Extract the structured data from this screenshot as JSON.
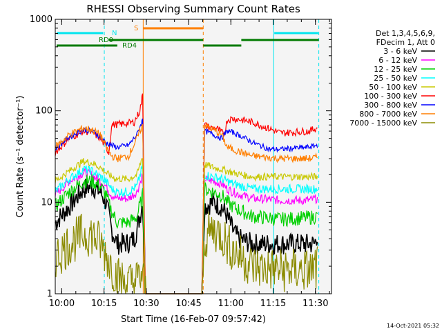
{
  "colors": {
    "background": "#ffffff",
    "plot_bg": "#f4f4f4",
    "axis": "#000000",
    "flag_cyan": "#00e5ee",
    "flag_green": "#007a00",
    "flag_orange": "#ff7f00"
  },
  "chart_data": {
    "type": "line",
    "title": "RHESSI Observing Summary Count Rates",
    "xlabel": "Start Time (16-Feb-07 09:57:42)",
    "ylabel": "Count Rate (s⁻¹ detector⁻¹)",
    "yscale": "log",
    "ylim": [
      1,
      1000
    ],
    "xlim_minutes": [
      0,
      98
    ],
    "x_ticks": [
      {
        "label": "10:00",
        "min": 2.3
      },
      {
        "label": "10:15",
        "min": 17.3
      },
      {
        "label": "10:30",
        "min": 32.3
      },
      {
        "label": "10:45",
        "min": 47.3
      },
      {
        "label": "11:00",
        "min": 62.3
      },
      {
        "label": "11:15",
        "min": 77.3
      },
      {
        "label": "11:30",
        "min": 92.3
      }
    ],
    "y_ticks": [
      {
        "label": "1",
        "value": 1
      },
      {
        "label": "10",
        "value": 10
      },
      {
        "label": "100",
        "value": 100
      },
      {
        "label": "1000",
        "value": 1000
      }
    ],
    "legend": {
      "header1": "Det 1,3,4,5,6,9,",
      "header2": "FDecim 1, Att 0",
      "position": "right"
    },
    "flags": {
      "n_label": "N",
      "s_label": "S",
      "rd0_label": "RD0",
      "rd4_label": "RD4"
    },
    "series": [
      {
        "name": "3 - 6 keV",
        "color": "#000000",
        "anchors": [
          [
            0,
            6
          ],
          [
            5,
            9
          ],
          [
            10,
            14
          ],
          [
            13,
            15
          ],
          [
            16,
            13
          ],
          [
            18,
            10
          ],
          [
            20,
            5
          ],
          [
            22,
            3.5
          ],
          [
            26,
            3.6
          ],
          [
            28,
            4
          ],
          [
            29,
            5
          ],
          [
            30,
            7
          ],
          [
            31,
            10
          ],
          [
            32,
            1
          ],
          [
            52,
            1
          ],
          [
            53,
            9
          ],
          [
            56,
            10
          ],
          [
            59,
            9
          ],
          [
            61,
            7
          ],
          [
            63,
            5
          ],
          [
            65,
            4
          ],
          [
            70,
            3.5
          ],
          [
            80,
            3.5
          ],
          [
            90,
            3.5
          ],
          [
            92,
            3.5
          ],
          [
            93,
            4.5
          ]
        ],
        "amp": 0.12
      },
      {
        "name": "6 - 12 keV",
        "color": "#ff00ff",
        "anchors": [
          [
            0,
            12
          ],
          [
            5,
            17
          ],
          [
            10,
            21
          ],
          [
            13,
            20
          ],
          [
            16,
            17
          ],
          [
            18,
            15
          ],
          [
            20,
            12
          ],
          [
            22,
            11
          ],
          [
            26,
            11
          ],
          [
            29,
            13
          ],
          [
            31,
            20
          ],
          [
            32,
            1
          ],
          [
            52,
            1
          ],
          [
            53,
            18
          ],
          [
            56,
            17
          ],
          [
            59,
            16
          ],
          [
            61,
            14
          ],
          [
            63,
            13
          ],
          [
            66,
            12
          ],
          [
            70,
            11
          ],
          [
            80,
            10.5
          ],
          [
            90,
            10.5
          ],
          [
            93,
            11
          ]
        ],
        "amp": 0.05
      },
      {
        "name": "12 - 25 keV",
        "color": "#00d000",
        "anchors": [
          [
            0,
            9
          ],
          [
            5,
            13
          ],
          [
            10,
            17
          ],
          [
            13,
            17
          ],
          [
            16,
            15
          ],
          [
            18,
            12
          ],
          [
            20,
            8
          ],
          [
            22,
            6
          ],
          [
            26,
            6
          ],
          [
            29,
            7
          ],
          [
            31,
            12
          ],
          [
            32,
            1
          ],
          [
            52,
            1
          ],
          [
            53,
            14
          ],
          [
            56,
            13
          ],
          [
            59,
            12
          ],
          [
            61,
            10
          ],
          [
            63,
            9
          ],
          [
            66,
            8
          ],
          [
            70,
            7
          ],
          [
            80,
            6.5
          ],
          [
            90,
            6.8
          ],
          [
            93,
            7
          ]
        ],
        "amp": 0.08
      },
      {
        "name": "25 - 50 keV",
        "color": "#00ffff",
        "anchors": [
          [
            0,
            13
          ],
          [
            5,
            18
          ],
          [
            10,
            23
          ],
          [
            13,
            22
          ],
          [
            16,
            19
          ],
          [
            18,
            17
          ],
          [
            20,
            14
          ],
          [
            22,
            13
          ],
          [
            26,
            13
          ],
          [
            29,
            15
          ],
          [
            31,
            25
          ],
          [
            32,
            1
          ],
          [
            52,
            1
          ],
          [
            53,
            20
          ],
          [
            56,
            19
          ],
          [
            59,
            18
          ],
          [
            61,
            17
          ],
          [
            63,
            16
          ],
          [
            66,
            15
          ],
          [
            70,
            14
          ],
          [
            80,
            14
          ],
          [
            90,
            14
          ],
          [
            93,
            14
          ]
        ],
        "amp": 0.05
      },
      {
        "name": "50 - 100 keV",
        "color": "#c8c800",
        "anchors": [
          [
            0,
            17
          ],
          [
            5,
            22
          ],
          [
            10,
            28
          ],
          [
            13,
            27
          ],
          [
            16,
            24
          ],
          [
            18,
            21
          ],
          [
            20,
            19
          ],
          [
            22,
            18
          ],
          [
            26,
            18
          ],
          [
            29,
            20
          ],
          [
            31,
            32
          ],
          [
            32,
            1
          ],
          [
            52,
            1
          ],
          [
            53,
            26
          ],
          [
            56,
            24
          ],
          [
            59,
            23
          ],
          [
            61,
            22
          ],
          [
            63,
            21
          ],
          [
            66,
            20
          ],
          [
            70,
            19
          ],
          [
            80,
            19
          ],
          [
            90,
            19
          ],
          [
            93,
            19
          ]
        ],
        "amp": 0.04
      },
      {
        "name": "100 - 300 keV",
        "color": "#ff0000",
        "anchors": [
          [
            0,
            35
          ],
          [
            5,
            50
          ],
          [
            10,
            60
          ],
          [
            13,
            58
          ],
          [
            16,
            50
          ],
          [
            18,
            40
          ],
          [
            19,
            35
          ],
          [
            20,
            70
          ],
          [
            24,
            72
          ],
          [
            28,
            75
          ],
          [
            30,
            100
          ],
          [
            31,
            150
          ],
          [
            32,
            1
          ],
          [
            52,
            1
          ],
          [
            53,
            70
          ],
          [
            55,
            65
          ],
          [
            57,
            65
          ],
          [
            60,
            55
          ],
          [
            61,
            80
          ],
          [
            63,
            82
          ],
          [
            66,
            80
          ],
          [
            70,
            75
          ],
          [
            80,
            57
          ],
          [
            90,
            60
          ],
          [
            93,
            65
          ]
        ],
        "amp": 0.04
      },
      {
        "name": "300 - 800 keV",
        "color": "#0000ff",
        "anchors": [
          [
            0,
            38
          ],
          [
            5,
            52
          ],
          [
            10,
            62
          ],
          [
            13,
            60
          ],
          [
            16,
            52
          ],
          [
            18,
            45
          ],
          [
            20,
            42
          ],
          [
            22,
            40
          ],
          [
            26,
            42
          ],
          [
            29,
            55
          ],
          [
            31,
            80
          ],
          [
            32,
            1
          ],
          [
            52,
            1
          ],
          [
            53,
            60
          ],
          [
            56,
            55
          ],
          [
            59,
            50
          ],
          [
            61,
            60
          ],
          [
            63,
            58
          ],
          [
            66,
            53
          ],
          [
            70,
            45
          ],
          [
            76,
            38
          ],
          [
            80,
            38
          ],
          [
            90,
            40
          ],
          [
            93,
            42
          ]
        ],
        "amp": 0.03
      },
      {
        "name": "800 - 7000 keV",
        "color": "#ff7f00",
        "anchors": [
          [
            0,
            40
          ],
          [
            5,
            55
          ],
          [
            10,
            65
          ],
          [
            13,
            62
          ],
          [
            16,
            55
          ],
          [
            18,
            40
          ],
          [
            20,
            32
          ],
          [
            22,
            30
          ],
          [
            26,
            32
          ],
          [
            29,
            50
          ],
          [
            31,
            70
          ],
          [
            32,
            1
          ],
          [
            52,
            1
          ],
          [
            53,
            70
          ],
          [
            56,
            62
          ],
          [
            59,
            55
          ],
          [
            61,
            40
          ],
          [
            63,
            38
          ],
          [
            66,
            35
          ],
          [
            70,
            32
          ],
          [
            80,
            30
          ],
          [
            90,
            30
          ],
          [
            93,
            31
          ]
        ],
        "amp": 0.04
      },
      {
        "name": "7000 - 15000 keV",
        "color": "#8b8b00",
        "anchors": [
          [
            0,
            2.5
          ],
          [
            5,
            3.5
          ],
          [
            10,
            4.5
          ],
          [
            13,
            4.5
          ],
          [
            16,
            3.5
          ],
          [
            18,
            2.7
          ],
          [
            20,
            2
          ],
          [
            22,
            1.5
          ],
          [
            26,
            1.3
          ],
          [
            29,
            1.4
          ],
          [
            31,
            1.6
          ],
          [
            32,
            1
          ],
          [
            52,
            1
          ],
          [
            53,
            4
          ],
          [
            56,
            5
          ],
          [
            59,
            4.5
          ],
          [
            61,
            3.5
          ],
          [
            63,
            3
          ],
          [
            66,
            2.5
          ],
          [
            70,
            2
          ],
          [
            80,
            1.8
          ],
          [
            90,
            1.8
          ],
          [
            93,
            1.9
          ]
        ],
        "amp": 0.25
      }
    ]
  },
  "timestamp": "14-Oct-2021 05:32"
}
